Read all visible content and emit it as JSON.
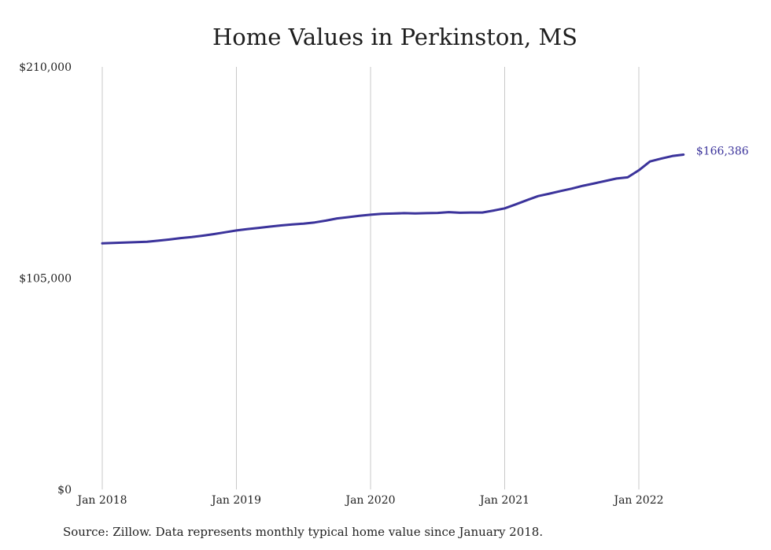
{
  "chart_data": {
    "type": "line",
    "title": "Home Values in Perkinston, MS",
    "xlabel": "",
    "ylabel": "",
    "ylim": [
      0,
      210000
    ],
    "yticks": [
      {
        "value": 0,
        "label": "$0"
      },
      {
        "value": 105000,
        "label": "$105,000"
      },
      {
        "value": 210000,
        "label": "$210,000"
      }
    ],
    "xticks": [
      {
        "date": "2018-01",
        "label": "Jan 2018"
      },
      {
        "date": "2019-01",
        "label": "Jan 2019"
      },
      {
        "date": "2020-01",
        "label": "Jan 2020"
      },
      {
        "date": "2021-01",
        "label": "Jan 2021"
      },
      {
        "date": "2022-01",
        "label": "Jan 2022"
      }
    ],
    "grid": "vertical",
    "line_color": "#3b339b",
    "series": [
      {
        "x": [
          "2018-01",
          "2018-02",
          "2018-03",
          "2018-04",
          "2018-05",
          "2018-06",
          "2018-07",
          "2018-08",
          "2018-09",
          "2018-10",
          "2018-11",
          "2018-12",
          "2019-01",
          "2019-02",
          "2019-03",
          "2019-04",
          "2019-05",
          "2019-06",
          "2019-07",
          "2019-08",
          "2019-09",
          "2019-10",
          "2019-11",
          "2019-12",
          "2020-01",
          "2020-02",
          "2020-03",
          "2020-04",
          "2020-05",
          "2020-06",
          "2020-07",
          "2020-08",
          "2020-09",
          "2020-10",
          "2020-11",
          "2020-12",
          "2021-01",
          "2021-02",
          "2021-03",
          "2021-04",
          "2021-05",
          "2021-06",
          "2021-07",
          "2021-08",
          "2021-09",
          "2021-10",
          "2021-11",
          "2021-12",
          "2022-01",
          "2022-02",
          "2022-03",
          "2022-04",
          "2022-05"
        ],
        "values": [
          122300,
          122500,
          122700,
          122900,
          123100,
          123600,
          124200,
          124900,
          125400,
          126100,
          126900,
          127800,
          128700,
          129400,
          130000,
          130600,
          131200,
          131700,
          132100,
          132700,
          133600,
          134700,
          135300,
          136000,
          136500,
          137000,
          137100,
          137300,
          137200,
          137300,
          137400,
          137800,
          137500,
          137600,
          137600,
          138600,
          139700,
          141700,
          143800,
          145800,
          147000,
          148300,
          149500,
          150900,
          152100,
          153300,
          154500,
          155100,
          158600,
          163000,
          164400,
          165700,
          166386
        ]
      }
    ],
    "end_label": "$166,386"
  },
  "footer": {
    "source_text": "Source: Zillow. Data represents monthly typical home value since January 2018."
  }
}
